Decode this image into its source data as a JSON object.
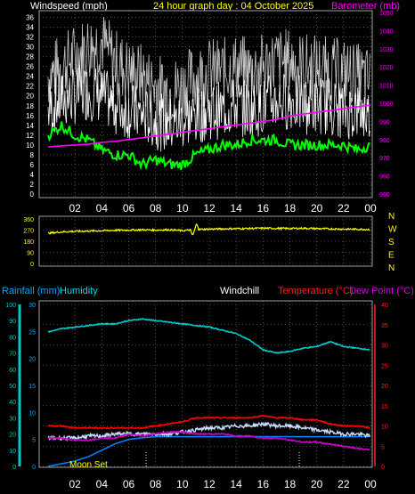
{
  "header": {
    "wind_title": "Windspeed (mph)",
    "date_title": "24 hour graph day : 04 October 2025",
    "baro_title": "Barometer (mb)"
  },
  "lower_header": {
    "rainfall": "Rainfall (mm)",
    "humidity": "Humidity",
    "windchill": "Windchill",
    "temperature": "Temperature (°C)",
    "dewpoint": "Dew Point (°C)"
  },
  "moon_label": "Moon Set",
  "colors": {
    "wind": "#ffffff",
    "gust": "#c8c8c8",
    "avg_wind": "#00ff00",
    "barometer": "#ff00ff",
    "direction": "#ffff00",
    "humidity": "#00c8c8",
    "rainfall": "#0080ff",
    "temperature": "#ff0000",
    "dewpoint": "#cc00cc",
    "windchill": "#c8dcff",
    "grid": "#808080",
    "title_yellow": "#ffff00",
    "title_magenta": "#ff00ff"
  },
  "chart_data": [
    {
      "type": "line",
      "id": "wind",
      "title": "24 hour graph day : 04 October 2025",
      "x_ticks": [
        "02",
        "04",
        "06",
        "08",
        "10",
        "12",
        "14",
        "16",
        "18",
        "20",
        "22",
        "00"
      ],
      "y_left_label": "Windspeed (mph)",
      "y_left_ticks": [
        "0",
        "2",
        "4",
        "6",
        "8",
        "10",
        "12",
        "14",
        "16",
        "18",
        "20",
        "22",
        "24",
        "26",
        "28",
        "30",
        "32",
        "34",
        "36"
      ],
      "ylim_left": [
        0,
        37
      ],
      "y_right_label": "Barometer (mb)",
      "y_right_ticks": [
        "950",
        "960",
        "970",
        "980",
        "990",
        "1000",
        "1010",
        "1020",
        "1030",
        "1040",
        "1050"
      ],
      "ylim_right": [
        950,
        1050
      ],
      "x": [
        0,
        1,
        2,
        3,
        4,
        5,
        6,
        7,
        8,
        9,
        10,
        11,
        12,
        13,
        14,
        15,
        16,
        17,
        18,
        19,
        20,
        21,
        22,
        23,
        24
      ],
      "series": [
        {
          "name": "Gust",
          "values": [
            24,
            26,
            28,
            30,
            31,
            27,
            25,
            24,
            22,
            21,
            22,
            24,
            25,
            25,
            26,
            25,
            26,
            27,
            27,
            26,
            26,
            25,
            25,
            24,
            23
          ]
        },
        {
          "name": "Windspeed",
          "values": [
            17,
            19,
            20,
            21,
            20,
            18,
            17,
            16,
            15,
            14,
            15,
            16,
            17,
            17,
            18,
            17,
            18,
            19,
            19,
            18,
            18,
            18,
            17,
            17,
            16
          ]
        },
        {
          "name": "Average",
          "values": [
            12,
            14,
            12,
            11,
            9,
            8,
            8,
            6,
            7,
            6,
            6,
            8,
            9,
            10,
            10,
            11,
            11,
            11,
            10,
            10,
            10,
            10,
            10,
            9,
            10
          ]
        },
        {
          "name": "Barometer",
          "values": [
            976,
            976.5,
            977,
            977.5,
            978.5,
            979,
            980,
            981,
            982,
            983,
            984,
            985,
            986,
            987,
            988,
            989,
            990,
            991,
            993,
            994,
            995,
            996,
            997,
            998,
            999
          ]
        }
      ],
      "grid": true
    },
    {
      "type": "line",
      "id": "direction",
      "y_ticks": [
        "360",
        "270",
        "180",
        "90",
        "0"
      ],
      "compass_labels": [
        "N",
        "W",
        "S",
        "E",
        "N"
      ],
      "ylim": [
        0,
        360
      ],
      "x": [
        0,
        1,
        2,
        3,
        4,
        5,
        6,
        7,
        8,
        9,
        10,
        11,
        12,
        13,
        14,
        15,
        16,
        17,
        18,
        19,
        20,
        21,
        22,
        23,
        24
      ],
      "series": [
        {
          "name": "Wind direction",
          "values": [
            245,
            255,
            260,
            262,
            265,
            268,
            270,
            272,
            270,
            273,
            265,
            275,
            278,
            280,
            282,
            283,
            285,
            284,
            283,
            285,
            282,
            280,
            278,
            277,
            275
          ]
        }
      ],
      "grid": true
    },
    {
      "type": "line",
      "id": "weather",
      "x_ticks": [
        "02",
        "04",
        "06",
        "08",
        "10",
        "12",
        "14",
        "16",
        "18",
        "20",
        "22",
        "00"
      ],
      "y_left_ticks": [
        "0",
        "10",
        "20",
        "30",
        "40",
        "50",
        "60",
        "70",
        "80",
        "90",
        "100"
      ],
      "ylim_left": [
        0,
        100
      ],
      "rain_ticks": [
        "0",
        "5",
        "10",
        "15",
        "20",
        "25",
        "30"
      ],
      "ylim_rain": [
        0,
        30
      ],
      "y_right_ticks": [
        "0",
        "5",
        "10",
        "15",
        "20",
        "25",
        "30",
        "35",
        "40"
      ],
      "ylim_right": [
        0,
        40
      ],
      "x": [
        0,
        1,
        2,
        3,
        4,
        5,
        6,
        7,
        8,
        9,
        10,
        11,
        12,
        13,
        14,
        15,
        16,
        17,
        18,
        19,
        20,
        21,
        22,
        23,
        24
      ],
      "series": [
        {
          "name": "Humidity",
          "axis": "left",
          "values": [
            83,
            85,
            86,
            87,
            88,
            88,
            90,
            91,
            90,
            89,
            88,
            87,
            86,
            84,
            82,
            78,
            72,
            70,
            71,
            73,
            74,
            77,
            74,
            73,
            72
          ]
        },
        {
          "name": "Rainfall",
          "axis": "rain",
          "values": [
            0,
            0.5,
            1,
            1.8,
            3,
            4.2,
            5,
            5.3,
            5.5,
            5.5,
            5.5,
            5.5,
            5.5,
            5.5,
            5.5,
            5.5,
            5.5,
            5.5,
            5.5,
            5.5,
            5.5,
            5.5,
            5.5,
            5.5,
            5.5
          ]
        },
        {
          "name": "Temperature",
          "axis": "right",
          "values": [
            10,
            10,
            9.5,
            9.5,
            9.5,
            9.5,
            9.5,
            9.5,
            10,
            10.5,
            11,
            12,
            12,
            12,
            12,
            12,
            12.5,
            12,
            12,
            11.5,
            11.5,
            10.5,
            10,
            10,
            9.5
          ]
        },
        {
          "name": "Windchill",
          "axis": "right",
          "values": [
            7,
            7,
            7,
            7.5,
            7.5,
            8,
            8,
            8,
            8,
            8,
            8.5,
            9,
            9.5,
            9.5,
            10,
            10,
            10.5,
            10,
            10,
            9.5,
            9,
            8.5,
            8,
            8,
            7.5
          ]
        },
        {
          "name": "Dew Point",
          "axis": "right",
          "values": [
            7,
            7,
            6.5,
            6.5,
            7,
            7,
            8,
            7.5,
            8,
            8.5,
            8.5,
            8,
            8,
            8,
            7.5,
            7.5,
            7,
            7,
            6.5,
            6,
            6,
            5.5,
            5,
            4.5,
            4
          ]
        }
      ],
      "grid": true
    }
  ]
}
